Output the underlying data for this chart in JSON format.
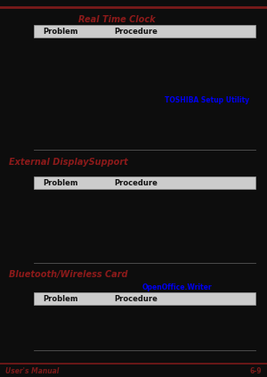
{
  "bg_color": "#0d0d0d",
  "top_line_color": "#7a1a1a",
  "section1_title": "Real Time Clock",
  "section1_title_color": "#8b1a1a",
  "section2_title": "External DisplaySupport",
  "section2_title_color": "#8b1a1a",
  "section3_title": "Bluetooth/Wireless Card",
  "section3_title_color": "#8b1a1a",
  "table_header_bg": "#cccccc",
  "table_header_text_color": "#111111",
  "blue_text": "TOSHIBA Setup Utility",
  "blue_text_color": "#0000ee",
  "blue_text2": "OpenOffice.Writer",
  "blue_text2_color": "#0000ee",
  "sep_color": "#555555",
  "footer_left": "User's Manual",
  "footer_right": "6-9",
  "footer_color": "#7a1a1a",
  "font_size_section": 7.0,
  "font_size_table": 6.0,
  "font_size_footer": 5.5
}
